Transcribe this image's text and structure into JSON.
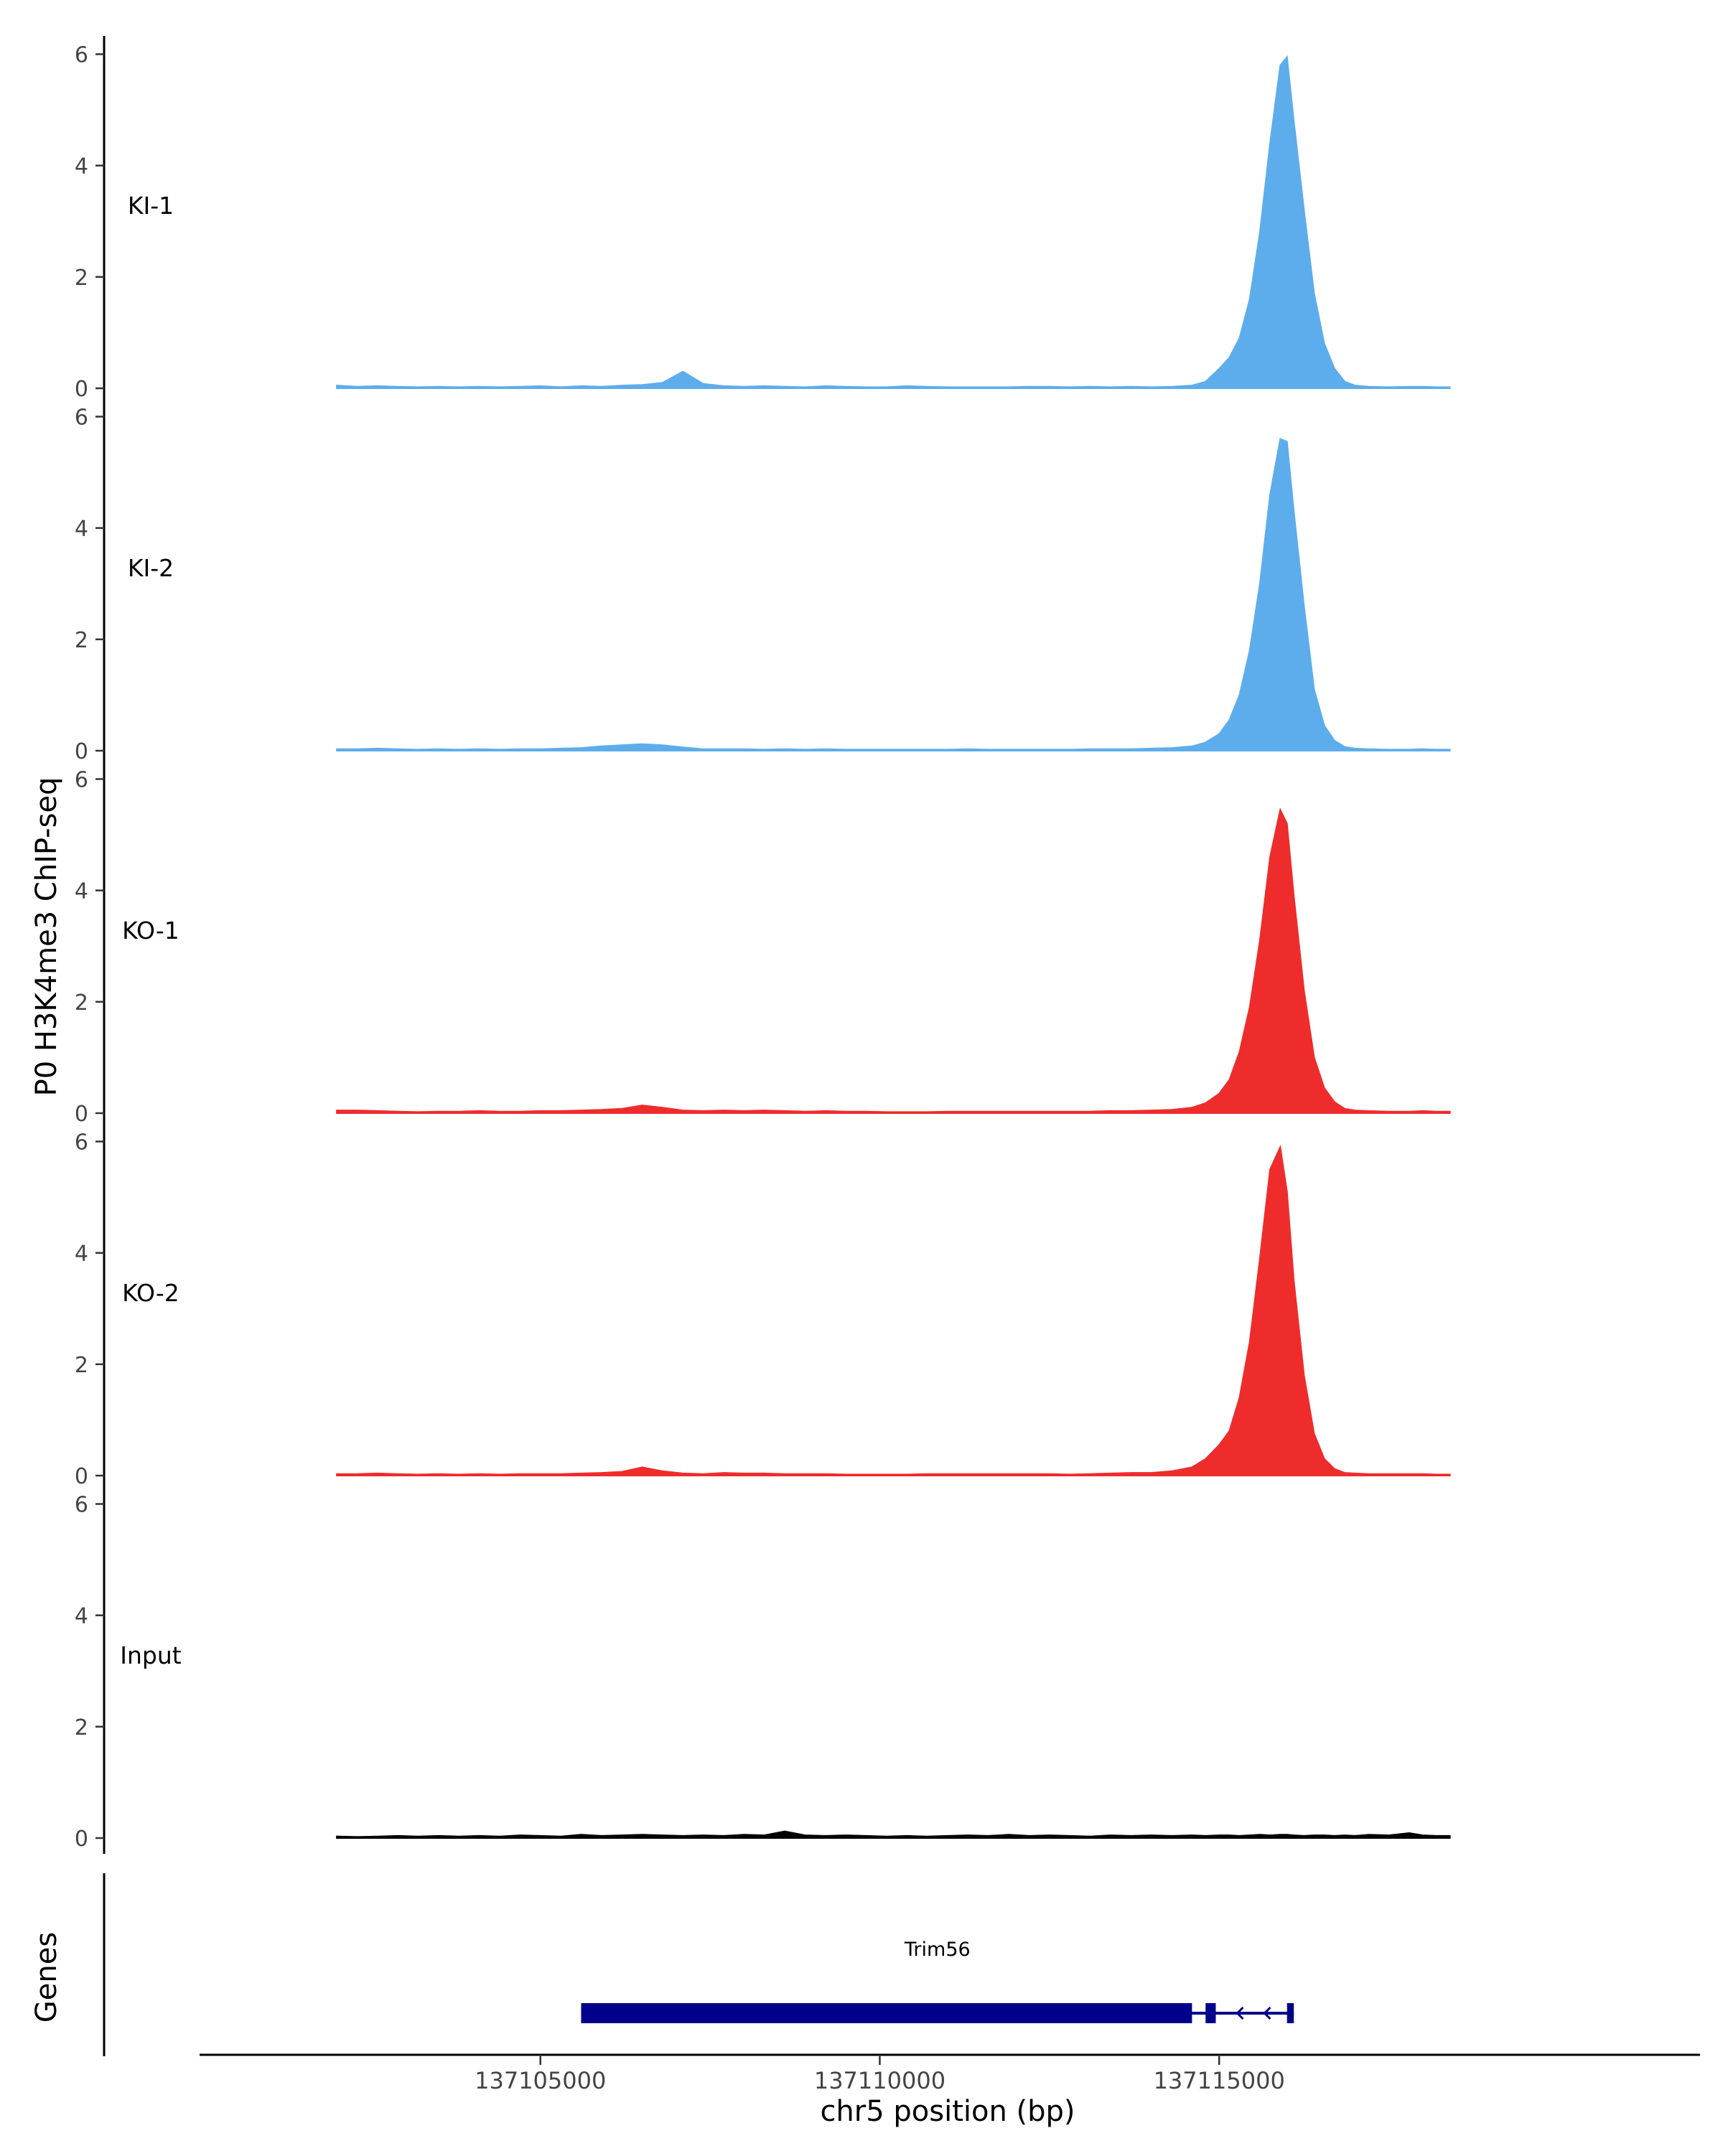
{
  "chart_data": {
    "type": "area",
    "ylabel": "P0 H3K4me3 ChIP-seq",
    "xlabel": "chr5 position (bp)",
    "ylim": [
      0,
      6.2
    ],
    "xlim": [
      137100000,
      137122000
    ],
    "y_ticks": [
      0,
      2,
      4,
      6
    ],
    "x_ticks": [
      137105000,
      137110000,
      137115000
    ],
    "x_tick_labels": [
      "137105000",
      "137110000",
      "137115000"
    ],
    "series": [
      {
        "name": "KI-1",
        "color": "#5DADEC",
        "x": [
          137102000,
          137102300,
          137102600,
          137102900,
          137103200,
          137103500,
          137103800,
          137104100,
          137104400,
          137104700,
          137105000,
          137105300,
          137105600,
          137105900,
          137106200,
          137106500,
          137106800,
          137107100,
          137107400,
          137107700,
          137108000,
          137108300,
          137108600,
          137108900,
          137109200,
          137109500,
          137109800,
          137110100,
          137110400,
          137110700,
          137111000,
          137111300,
          137111600,
          137111900,
          137112200,
          137112500,
          137112800,
          137113100,
          137113400,
          137113700,
          137114000,
          137114300,
          137114600,
          137114800,
          137115000,
          137115150,
          137115300,
          137115450,
          137115600,
          137115750,
          137115900,
          137116000,
          137116100,
          137116250,
          137116400,
          137116550,
          137116700,
          137116850,
          137117000,
          137117200,
          137117500,
          137117800,
          137118000,
          137118200,
          137118400
        ],
        "values": [
          0.05,
          0.03,
          0.04,
          0.03,
          0.02,
          0.03,
          0.02,
          0.03,
          0.02,
          0.03,
          0.04,
          0.02,
          0.04,
          0.03,
          0.05,
          0.06,
          0.1,
          0.3,
          0.08,
          0.04,
          0.03,
          0.04,
          0.03,
          0.02,
          0.04,
          0.03,
          0.02,
          0.02,
          0.04,
          0.03,
          0.02,
          0.02,
          0.02,
          0.02,
          0.03,
          0.03,
          0.02,
          0.03,
          0.02,
          0.03,
          0.02,
          0.03,
          0.05,
          0.12,
          0.35,
          0.55,
          0.9,
          1.6,
          2.8,
          4.4,
          5.8,
          5.95,
          4.8,
          3.2,
          1.7,
          0.8,
          0.35,
          0.12,
          0.05,
          0.03,
          0.02,
          0.03,
          0.03,
          0.02,
          0.02
        ]
      },
      {
        "name": "KI-2",
        "color": "#5DADEC",
        "x": [
          137102000,
          137102300,
          137102600,
          137102900,
          137103200,
          137103500,
          137103800,
          137104100,
          137104400,
          137104700,
          137105000,
          137105300,
          137105600,
          137105900,
          137106200,
          137106500,
          137106800,
          137107100,
          137107400,
          137107700,
          137108000,
          137108300,
          137108600,
          137108900,
          137109200,
          137109500,
          137109800,
          137110100,
          137110400,
          137110700,
          137111000,
          137111300,
          137111600,
          137111900,
          137112200,
          137112500,
          137112800,
          137113100,
          137113400,
          137113700,
          137114000,
          137114300,
          137114600,
          137114800,
          137115000,
          137115150,
          137115300,
          137115450,
          137115600,
          137115750,
          137115900,
          137116000,
          137116100,
          137116250,
          137116400,
          137116550,
          137116700,
          137116850,
          137117000,
          137117200,
          137117500,
          137117800,
          137118000,
          137118200,
          137118400
        ],
        "values": [
          0.03,
          0.03,
          0.04,
          0.03,
          0.02,
          0.03,
          0.02,
          0.03,
          0.02,
          0.03,
          0.03,
          0.04,
          0.05,
          0.08,
          0.1,
          0.12,
          0.1,
          0.06,
          0.03,
          0.03,
          0.03,
          0.02,
          0.03,
          0.02,
          0.03,
          0.02,
          0.02,
          0.02,
          0.02,
          0.02,
          0.02,
          0.03,
          0.02,
          0.02,
          0.02,
          0.02,
          0.02,
          0.03,
          0.03,
          0.03,
          0.04,
          0.05,
          0.08,
          0.15,
          0.3,
          0.55,
          1.0,
          1.8,
          3.0,
          4.6,
          5.6,
          5.55,
          4.3,
          2.6,
          1.1,
          0.45,
          0.18,
          0.07,
          0.04,
          0.03,
          0.02,
          0.02,
          0.03,
          0.02,
          0.02
        ]
      },
      {
        "name": "KO-1",
        "color": "#EE2C2C",
        "x": [
          137102000,
          137102300,
          137102600,
          137102900,
          137103200,
          137103500,
          137103800,
          137104100,
          137104400,
          137104700,
          137105000,
          137105300,
          137105600,
          137105900,
          137106200,
          137106500,
          137106800,
          137107100,
          137107400,
          137107700,
          137108000,
          137108300,
          137108600,
          137108900,
          137109200,
          137109500,
          137109800,
          137110100,
          137110400,
          137110700,
          137111000,
          137111300,
          137111600,
          137111900,
          137112200,
          137112500,
          137112800,
          137113100,
          137113400,
          137113700,
          137114000,
          137114300,
          137114600,
          137114800,
          137115000,
          137115150,
          137115300,
          137115450,
          137115600,
          137115750,
          137115900,
          137116000,
          137116100,
          137116250,
          137116400,
          137116550,
          137116700,
          137116850,
          137117000,
          137117200,
          137117500,
          137117800,
          137118000,
          137118200,
          137118400
        ],
        "values": [
          0.05,
          0.05,
          0.04,
          0.03,
          0.02,
          0.03,
          0.03,
          0.04,
          0.03,
          0.03,
          0.04,
          0.04,
          0.05,
          0.06,
          0.08,
          0.14,
          0.1,
          0.05,
          0.04,
          0.05,
          0.04,
          0.05,
          0.04,
          0.03,
          0.04,
          0.03,
          0.03,
          0.02,
          0.02,
          0.02,
          0.03,
          0.03,
          0.03,
          0.03,
          0.03,
          0.03,
          0.03,
          0.03,
          0.04,
          0.04,
          0.05,
          0.06,
          0.1,
          0.18,
          0.35,
          0.6,
          1.1,
          1.9,
          3.1,
          4.6,
          5.45,
          5.2,
          3.9,
          2.2,
          1.0,
          0.45,
          0.2,
          0.08,
          0.05,
          0.04,
          0.03,
          0.03,
          0.04,
          0.03,
          0.03
        ]
      },
      {
        "name": "KO-2",
        "color": "#EE2C2C",
        "x": [
          137102000,
          137102300,
          137102600,
          137102900,
          137103200,
          137103500,
          137103800,
          137104100,
          137104400,
          137104700,
          137105000,
          137105300,
          137105600,
          137105900,
          137106200,
          137106500,
          137106800,
          137107100,
          137107400,
          137107700,
          137108000,
          137108300,
          137108600,
          137108900,
          137109200,
          137109500,
          137109800,
          137110100,
          137110400,
          137110700,
          137111000,
          137111300,
          137111600,
          137111900,
          137112200,
          137112500,
          137112800,
          137113100,
          137113400,
          137113700,
          137114000,
          137114300,
          137114600,
          137114800,
          137115000,
          137115150,
          137115300,
          137115450,
          137115600,
          137115750,
          137115900,
          137116000,
          137116100,
          137116250,
          137116400,
          137116550,
          137116700,
          137116850,
          137117000,
          137117200,
          137117500,
          137117800,
          137118000,
          137118200,
          137118400
        ],
        "values": [
          0.03,
          0.03,
          0.04,
          0.03,
          0.02,
          0.03,
          0.02,
          0.03,
          0.02,
          0.03,
          0.03,
          0.03,
          0.04,
          0.05,
          0.07,
          0.15,
          0.08,
          0.04,
          0.03,
          0.05,
          0.04,
          0.04,
          0.03,
          0.03,
          0.03,
          0.02,
          0.02,
          0.02,
          0.02,
          0.03,
          0.03,
          0.03,
          0.03,
          0.03,
          0.03,
          0.03,
          0.02,
          0.03,
          0.04,
          0.05,
          0.05,
          0.08,
          0.15,
          0.3,
          0.55,
          0.8,
          1.4,
          2.4,
          3.9,
          5.5,
          5.9,
          5.1,
          3.5,
          1.8,
          0.75,
          0.3,
          0.12,
          0.05,
          0.04,
          0.03,
          0.03,
          0.03,
          0.03,
          0.02,
          0.02
        ]
      },
      {
        "name": "Input",
        "color": "#000000",
        "x": [
          137102000,
          137102300,
          137102600,
          137102900,
          137103200,
          137103500,
          137103800,
          137104100,
          137104400,
          137104700,
          137105000,
          137105300,
          137105600,
          137105900,
          137106200,
          137106500,
          137106800,
          137107100,
          137107400,
          137107700,
          137108000,
          137108300,
          137108600,
          137108900,
          137109200,
          137109500,
          137109800,
          137110100,
          137110400,
          137110700,
          137111000,
          137111300,
          137111600,
          137111900,
          137112200,
          137112500,
          137112800,
          137113100,
          137113400,
          137113700,
          137114000,
          137114300,
          137114600,
          137114800,
          137115000,
          137115150,
          137115300,
          137115450,
          137115600,
          137115750,
          137115900,
          137116000,
          137116100,
          137116250,
          137116400,
          137116550,
          137116700,
          137116850,
          137117000,
          137117200,
          137117500,
          137117800,
          137118000,
          137118200,
          137118400
        ],
        "values": [
          0.03,
          0.02,
          0.03,
          0.04,
          0.03,
          0.04,
          0.03,
          0.04,
          0.03,
          0.05,
          0.04,
          0.03,
          0.06,
          0.04,
          0.05,
          0.06,
          0.05,
          0.04,
          0.05,
          0.04,
          0.06,
          0.05,
          0.12,
          0.05,
          0.04,
          0.05,
          0.04,
          0.03,
          0.04,
          0.03,
          0.04,
          0.05,
          0.04,
          0.06,
          0.04,
          0.05,
          0.04,
          0.03,
          0.05,
          0.04,
          0.05,
          0.04,
          0.05,
          0.04,
          0.05,
          0.05,
          0.04,
          0.05,
          0.06,
          0.05,
          0.06,
          0.06,
          0.05,
          0.04,
          0.05,
          0.05,
          0.04,
          0.05,
          0.04,
          0.06,
          0.05,
          0.09,
          0.05,
          0.04,
          0.04
        ]
      }
    ],
    "genes": {
      "label": "Genes",
      "color": "#00008B",
      "items": [
        {
          "name": "Trim56",
          "strand": "-",
          "start": 137105600,
          "end": 137116100,
          "exons": [
            [
              137105600,
              137114600
            ],
            [
              137114800,
              137114950
            ],
            [
              137116000,
              137116100
            ]
          ]
        }
      ]
    }
  }
}
